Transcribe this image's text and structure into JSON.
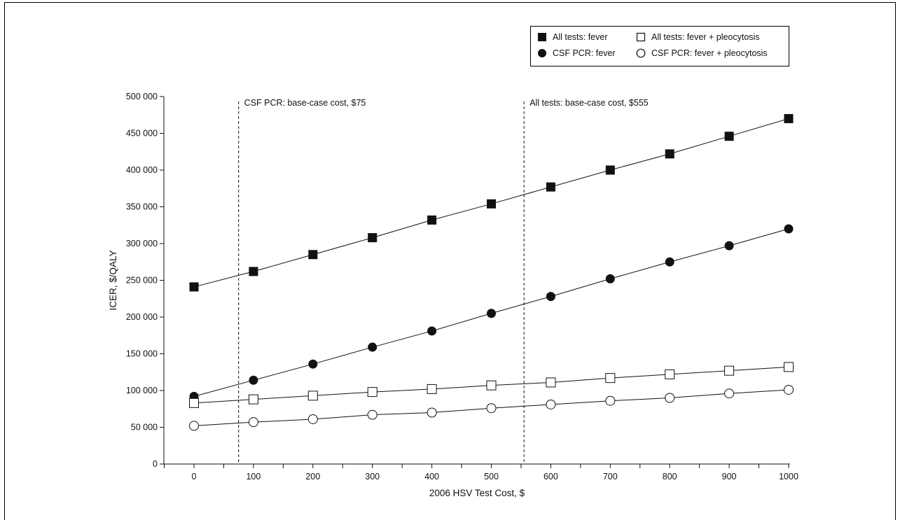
{
  "chart_data": {
    "type": "line",
    "xlabel": "2006 HSV Test Cost, $",
    "ylabel": "ICER, $/QALY",
    "x": [
      0,
      100,
      200,
      300,
      400,
      500,
      600,
      700,
      800,
      900,
      1000
    ],
    "xlim": [
      -50,
      1000
    ],
    "ylim": [
      0,
      500000
    ],
    "xticks": [
      0,
      100,
      200,
      300,
      400,
      500,
      600,
      700,
      800,
      900,
      1000
    ],
    "xtick_labels": [
      "0",
      "100",
      "200",
      "300",
      "400",
      "500",
      "600",
      "700",
      "800",
      "900",
      "1000"
    ],
    "yticks": [
      0,
      50000,
      100000,
      150000,
      200000,
      250000,
      300000,
      350000,
      400000,
      450000,
      500000
    ],
    "ytick_labels": [
      "0",
      "50 000",
      "100 000",
      "150 000",
      "200 000",
      "250 000",
      "300 000",
      "350 000",
      "400 000",
      "450 000",
      "500 000"
    ],
    "grid": false,
    "legend_position": "top-right",
    "series": [
      {
        "name": "All tests: fever",
        "marker": "filled-square",
        "values": [
          241000,
          262000,
          285000,
          308000,
          332000,
          354000,
          377000,
          400000,
          422000,
          446000,
          470000
        ]
      },
      {
        "name": "CSF PCR: fever",
        "marker": "filled-circle",
        "values": [
          92000,
          114000,
          136000,
          159000,
          181000,
          205000,
          228000,
          252000,
          275000,
          297000,
          320000
        ]
      },
      {
        "name": "All tests: fever + pleocytosis",
        "marker": "open-square",
        "values": [
          83000,
          88000,
          93000,
          98000,
          102000,
          107000,
          111000,
          117000,
          122000,
          127000,
          132000
        ]
      },
      {
        "name": "CSF PCR: fever + pleocytosis",
        "marker": "open-circle",
        "values": [
          52000,
          57000,
          61000,
          67000,
          70000,
          76000,
          81000,
          86000,
          90000,
          96000,
          101000
        ]
      }
    ],
    "annotations": [
      {
        "x": 75,
        "text": "CSF PCR: base-case cost, $75"
      },
      {
        "x": 555,
        "text": "All tests: base-case cost, $555"
      }
    ]
  },
  "colors": {
    "ink": "#111111",
    "background": "#ffffff"
  }
}
